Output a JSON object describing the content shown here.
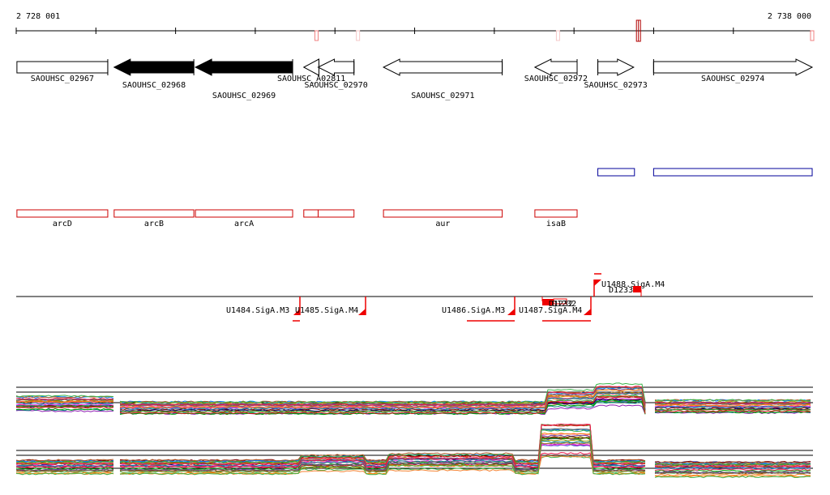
{
  "coordinates": {
    "start_label": "2 728 001",
    "end_label": "2 738 000",
    "start": 2728001,
    "end": 2738000
  },
  "axis_markers": [
    {
      "pos": 2731770,
      "color": "#f08080"
    },
    {
      "pos": 2732290,
      "color": "#f5c8c8"
    },
    {
      "pos": 2734800,
      "color": "#f5c8c8"
    },
    {
      "pos": 2735800,
      "color": "#b00000",
      "highlight": true
    },
    {
      "pos": 2737990,
      "color": "#f08080"
    }
  ],
  "genes": [
    {
      "name": "SAOUHSC_02967",
      "start": 2728010,
      "end": 2729150,
      "strand": "none",
      "filled": false,
      "label_row": 0
    },
    {
      "name": "SAOUHSC_02968",
      "start": 2729230,
      "end": 2730230,
      "strand": "-",
      "filled": true,
      "label_row": 1
    },
    {
      "name": "SAOUHSC_02969",
      "start": 2730250,
      "end": 2731470,
      "strand": "-",
      "filled": true,
      "label_row": 2
    },
    {
      "name": "SAOUHSC_A02811",
      "start": 2731610,
      "end": 2731800,
      "strand": "-",
      "filled": false,
      "label_row": 0
    },
    {
      "name": "SAOUHSC_02970",
      "start": 2731790,
      "end": 2732240,
      "strand": "-",
      "filled": false,
      "label_row": 1
    },
    {
      "name": "SAOUHSC_02971",
      "start": 2732610,
      "end": 2734100,
      "strand": "-",
      "filled": false,
      "label_row": 2
    },
    {
      "name": "SAOUHSC_02972",
      "start": 2734510,
      "end": 2735040,
      "strand": "-",
      "filled": false,
      "label_row": 0
    },
    {
      "name": "SAOUHSC_02973",
      "start": 2735300,
      "end": 2735750,
      "strand": "+",
      "filled": false,
      "label_row": 1
    },
    {
      "name": "SAOUHSC_02974",
      "start": 2736000,
      "end": 2737990,
      "strand": "+",
      "filled": false,
      "label_row": 0
    }
  ],
  "blue_features": [
    {
      "start": 2735300,
      "end": 2735760
    },
    {
      "start": 2736000,
      "end": 2737990
    }
  ],
  "annotations": [
    {
      "name": "arcD",
      "start": 2728010,
      "end": 2729150
    },
    {
      "name": "arcB",
      "start": 2729230,
      "end": 2730230
    },
    {
      "name": "arcA",
      "start": 2730250,
      "end": 2731470
    },
    {
      "name": "",
      "start": 2731610,
      "end": 2731790
    },
    {
      "name": "",
      "start": 2731790,
      "end": 2732240
    },
    {
      "name": "aur",
      "start": 2732610,
      "end": 2734100
    },
    {
      "name": "isaB",
      "start": 2734510,
      "end": 2735040
    }
  ],
  "promoters": [
    {
      "name": "U1484.SigA.M3"
    },
    {
      "name": "U1485.SigA.M4"
    },
    {
      "name": "U1486.SigA.M3"
    },
    {
      "name": "U1487.SigA.M4"
    },
    {
      "name": "U1488.SigA.M4"
    }
  ],
  "small_features": [
    {
      "name": "D1232"
    },
    {
      "name": "D1233"
    }
  ],
  "colors": {
    "annotation": "#cc0000",
    "blue": "#000099",
    "promoter": "#ee0000",
    "gene_fill": "#000000"
  }
}
